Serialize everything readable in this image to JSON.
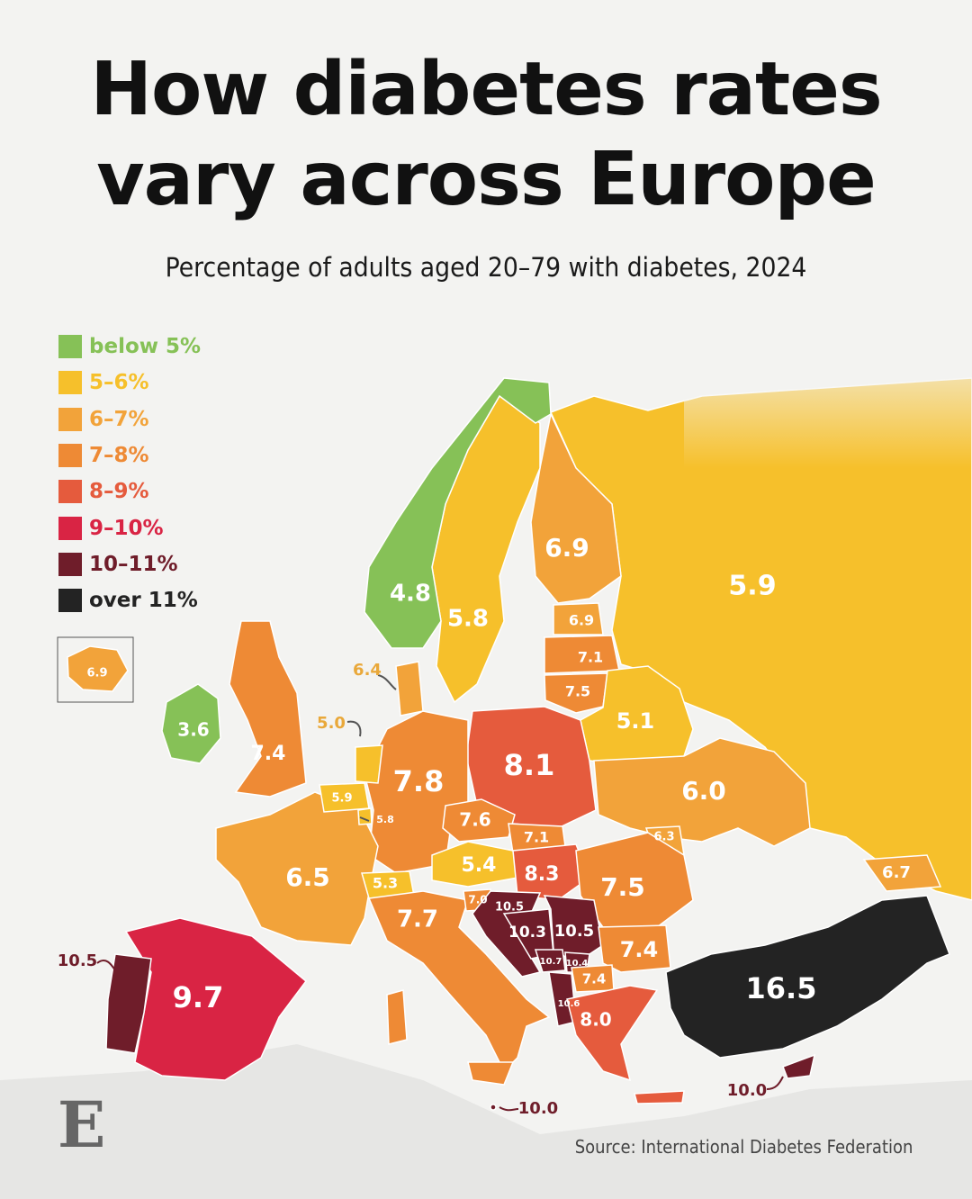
{
  "title_line1": "How diabetes rates",
  "title_line2": "vary across Europe",
  "subtitle": "Percentage of adults aged 20–79 with diabetes, 2024",
  "source": "Source: International Diabetes Federation",
  "logo_text": "E",
  "legend": [
    {
      "label": "below 5%",
      "color": "#86c157"
    },
    {
      "label": "5–6%",
      "color": "#f6c02b"
    },
    {
      "label": "6–7%",
      "color": "#f2a33a"
    },
    {
      "label": "7–8%",
      "color": "#ee8a35"
    },
    {
      "label": "8–9%",
      "color": "#e55b3d"
    },
    {
      "label": "9–10%",
      "color": "#d92444"
    },
    {
      "label": "10–11%",
      "color": "#6f1d2a"
    },
    {
      "label": "over 11%",
      "color": "#232323"
    }
  ],
  "countries": [
    {
      "name": "Russia",
      "value": "5.9",
      "color": "#f6c02b"
    },
    {
      "name": "Finland",
      "value": "6.9",
      "color": "#f2a33a"
    },
    {
      "name": "Sweden",
      "value": "5.8",
      "color": "#f6c02b"
    },
    {
      "name": "Norway",
      "value": "4.8",
      "color": "#86c157"
    },
    {
      "name": "Estonia",
      "value": "6.9",
      "color": "#f2a33a"
    },
    {
      "name": "Latvia",
      "value": "7.1",
      "color": "#ee8a35"
    },
    {
      "name": "Lithuania",
      "value": "7.5",
      "color": "#ee8a35"
    },
    {
      "name": "Belarus",
      "value": "5.1",
      "color": "#f6c02b"
    },
    {
      "name": "Ireland",
      "value": "3.6",
      "color": "#86c157"
    },
    {
      "name": "United Kingdom",
      "value": "7.4",
      "color": "#ee8a35"
    },
    {
      "name": "Poland",
      "value": "8.1",
      "color": "#e55b3d"
    },
    {
      "name": "Germany",
      "value": "7.8",
      "color": "#ee8a35"
    },
    {
      "name": "Ukraine",
      "value": "6.0",
      "color": "#f2a33a"
    },
    {
      "name": "Czechia",
      "value": "7.6",
      "color": "#ee8a35"
    },
    {
      "name": "Slovakia",
      "value": "7.1",
      "color": "#ee8a35"
    },
    {
      "name": "Moldova",
      "value": "6.3",
      "color": "#f2a33a"
    },
    {
      "name": "Austria",
      "value": "5.4",
      "color": "#f6c02b"
    },
    {
      "name": "Hungary",
      "value": "8.3",
      "color": "#e55b3d"
    },
    {
      "name": "France",
      "value": "6.5",
      "color": "#f2a33a"
    },
    {
      "name": "Switzerland",
      "value": "5.3",
      "color": "#f6c02b"
    },
    {
      "name": "Romania",
      "value": "7.5",
      "color": "#ee8a35"
    },
    {
      "name": "Georgia",
      "value": "6.7",
      "color": "#f2a33a"
    },
    {
      "name": "Italy",
      "value": "7.7",
      "color": "#ee8a35"
    },
    {
      "name": "Slovenia",
      "value": "7.0",
      "color": "#ee8a35"
    },
    {
      "name": "Croatia",
      "value": "10.5",
      "color": "#6f1d2a"
    },
    {
      "name": "Bosnia and Herzegovina",
      "value": "10.3",
      "color": "#6f1d2a"
    },
    {
      "name": "Serbia",
      "value": "10.5",
      "color": "#6f1d2a"
    },
    {
      "name": "Montenegro",
      "value": "10.7",
      "color": "#6f1d2a"
    },
    {
      "name": "Kosovo",
      "value": "10.4",
      "color": "#6f1d2a"
    },
    {
      "name": "Bulgaria",
      "value": "7.4",
      "color": "#ee8a35"
    },
    {
      "name": "North Macedonia",
      "value": "7.4",
      "color": "#ee8a35"
    },
    {
      "name": "Albania",
      "value": "10.6",
      "color": "#6f1d2a"
    },
    {
      "name": "Greece",
      "value": "8.0",
      "color": "#e55b3d"
    },
    {
      "name": "Turkey",
      "value": "16.5",
      "color": "#232323"
    },
    {
      "name": "Spain",
      "value": "9.7",
      "color": "#d92444"
    },
    {
      "name": "Portugal",
      "value": "10.5",
      "color": "#6f1d2a"
    },
    {
      "name": "Netherlands",
      "value": "5.0",
      "color": "#f6c02b"
    },
    {
      "name": "Belgium",
      "value": "5.9",
      "color": "#f6c02b"
    },
    {
      "name": "Luxembourg",
      "value": "5.8",
      "color": "#f6c02b"
    },
    {
      "name": "Denmark",
      "value": "6.4",
      "color": "#f2a33a"
    },
    {
      "name": "Iceland",
      "value": "6.9",
      "color": "#f2a33a"
    },
    {
      "name": "Malta",
      "value": "10.0",
      "color": "#6f1d2a"
    },
    {
      "name": "Cyprus",
      "value": "10.0",
      "color": "#6f1d2a"
    }
  ]
}
